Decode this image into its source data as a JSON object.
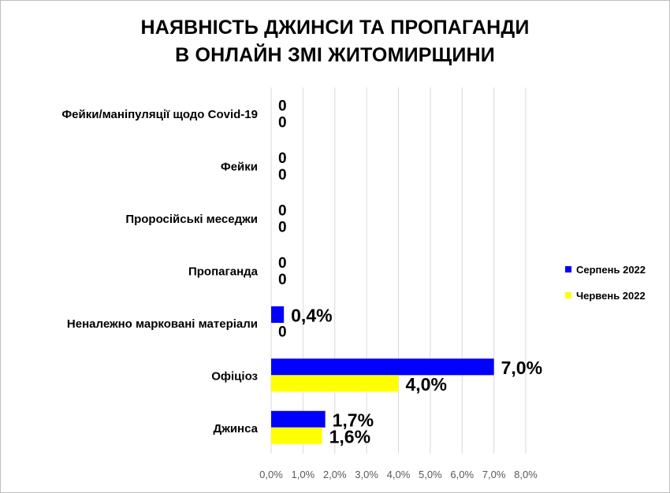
{
  "chart_data": {
    "type": "bar",
    "orientation": "horizontal",
    "title_lines": [
      "НАЯВНІСТЬ ДЖИНСИ ТА ПРОПАГАНДИ",
      "В ОНЛАЙН ЗМІ ЖИТОМИРЩИНИ"
    ],
    "categories": [
      "Фейки/маніпуляції щодо Covid-19",
      "Фейки",
      "Проросійські меседжи",
      "Пропаганда",
      "Неналежно марковані матеріали",
      "Офіціоз",
      "Джинса"
    ],
    "series": [
      {
        "name": "Серпень 2022",
        "color": "#0000FF",
        "values": [
          0,
          0,
          0,
          0,
          0.4,
          7.0,
          1.7
        ],
        "labels": [
          "0",
          "0",
          "0",
          "0",
          "0,4%",
          "7,0%",
          "1,7%"
        ]
      },
      {
        "name": "Червень 2022",
        "color": "#FFFF00",
        "values": [
          0,
          0,
          0,
          0,
          0,
          4.0,
          1.6
        ],
        "labels": [
          "0",
          "0",
          "0",
          "0",
          "0",
          "4,0%",
          "1,6%"
        ]
      }
    ],
    "xlim": [
      0,
      8
    ],
    "x_ticks": [
      0,
      1,
      2,
      3,
      4,
      5,
      6,
      7,
      8
    ],
    "x_tick_labels": [
      "0,0%",
      "1,0%",
      "2,0%",
      "3,0%",
      "4,0%",
      "5,0%",
      "6,0%",
      "7,0%",
      "8,0%"
    ],
    "grid": "vertical, light gray",
    "legend_position": "right"
  }
}
